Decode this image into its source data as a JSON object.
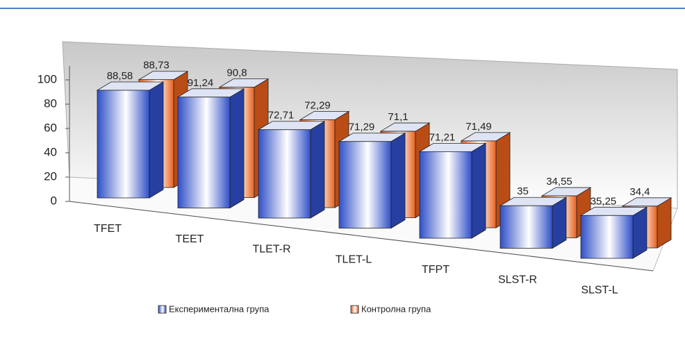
{
  "chart_data": {
    "type": "bar3d",
    "categories": [
      "TFET",
      "TEET",
      "TLET-R",
      "TLET-L",
      "TFPT",
      "SLST-R",
      "SLST-L"
    ],
    "series": [
      {
        "name": "Експериментална група",
        "color": "#2f4fc8",
        "values": [
          88.58,
          91.24,
          72.71,
          71.29,
          71.21,
          35,
          35.25
        ],
        "value_labels": [
          "88,58",
          "91,24",
          "72,71",
          "71,29",
          "71,21",
          "35",
          "35,25"
        ]
      },
      {
        "name": "Контролна група",
        "color": "#e8601c",
        "values": [
          88.73,
          90.8,
          72.29,
          71.1,
          71.49,
          34.55,
          34.4
        ],
        "value_labels": [
          "88,73",
          "90,8",
          "72,29",
          "71,1",
          "71,49",
          "34,55",
          "34,4"
        ]
      }
    ],
    "ylim": [
      0,
      100
    ],
    "yticks": [
      0,
      20,
      40,
      60,
      80,
      100
    ],
    "legend": "bottom"
  }
}
